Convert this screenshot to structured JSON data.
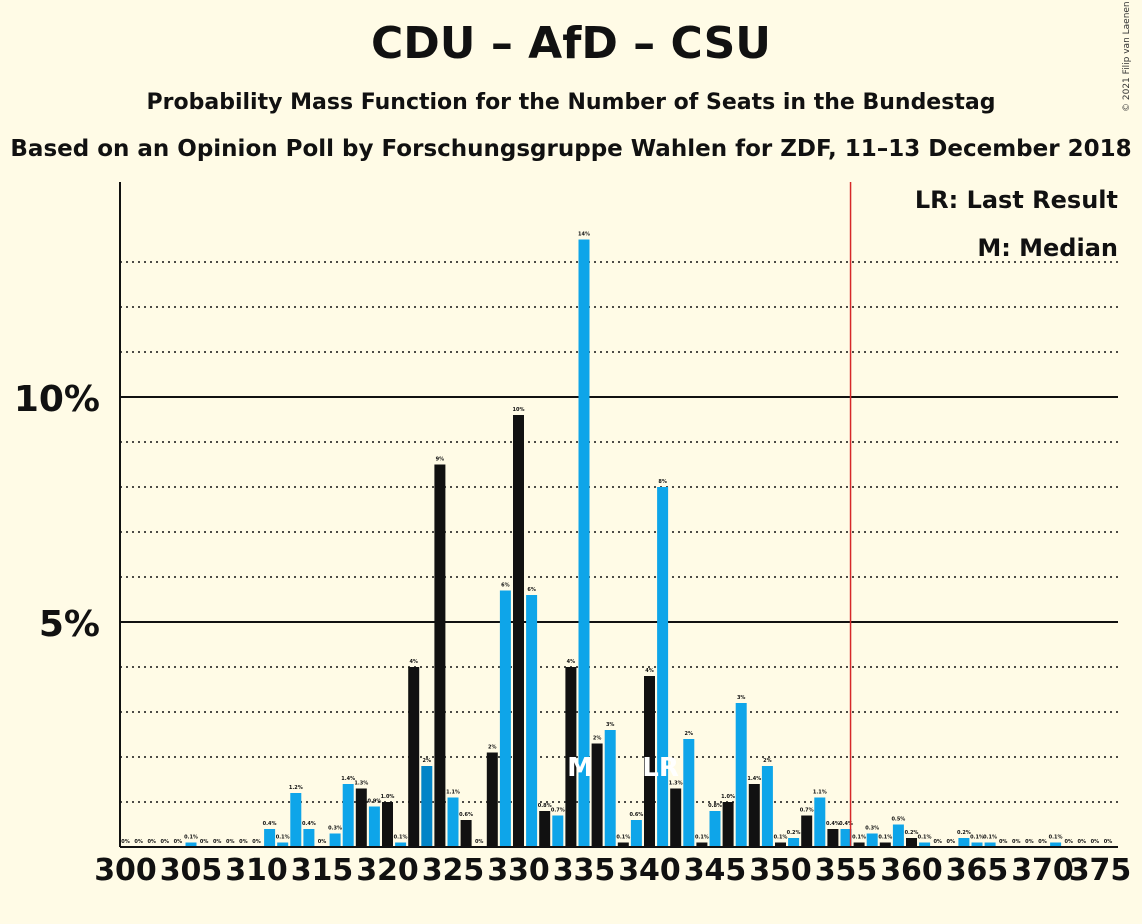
{
  "title": "CDU – AfD – CSU",
  "subtitle": "Probability Mass Function for the Number of Seats in the Bundestag",
  "subtitle2": "Based on an Opinion Poll by Forschungsgruppe Wahlen for ZDF, 11–13 December 2018",
  "copyright": "© 2021 Filip van Laenen",
  "legend": {
    "lr": "LR: Last Result",
    "m": "M: Median"
  },
  "colors": {
    "background": "#fffbe6",
    "bar_light": "#0ea5e9",
    "bar_dark": "#0284c7",
    "bar_black": "#111111",
    "majority_line": "#d62728"
  },
  "chart_data": {
    "type": "bar",
    "xlabel": "",
    "ylabel": "",
    "xlim": [
      300,
      375
    ],
    "ylim": [
      0,
      14.7
    ],
    "x_ticks": [
      300,
      305,
      310,
      315,
      320,
      325,
      330,
      335,
      340,
      345,
      350,
      355,
      360,
      365,
      370,
      375
    ],
    "y_ticks": [
      {
        "value": 5,
        "label": "5%"
      },
      {
        "value": 10,
        "label": "10%"
      }
    ],
    "grid": "dotted every 1%",
    "majority_line": 355.5,
    "median": 335,
    "last_result": 341,
    "markers": [
      {
        "x": 335,
        "label": "M"
      },
      {
        "x": 341,
        "label": "LR"
      }
    ],
    "bars": [
      {
        "x": 300,
        "value": 0.0,
        "label": "0%"
      },
      {
        "x": 301,
        "value": 0.0,
        "label": "0%"
      },
      {
        "x": 302,
        "value": 0.0,
        "label": "0%"
      },
      {
        "x": 303,
        "value": 0.0,
        "label": "0%"
      },
      {
        "x": 304,
        "value": 0.0,
        "label": "0%"
      },
      {
        "x": 305,
        "value": 0.1,
        "label": "0.1%"
      },
      {
        "x": 306,
        "value": 0.0,
        "label": "0%"
      },
      {
        "x": 307,
        "value": 0.0,
        "label": "0%"
      },
      {
        "x": 308,
        "value": 0.0,
        "label": "0%"
      },
      {
        "x": 309,
        "value": 0.0,
        "label": "0%"
      },
      {
        "x": 310,
        "value": 0.0,
        "label": "0%"
      },
      {
        "x": 311,
        "value": 0.4,
        "label": "0.4%"
      },
      {
        "x": 312,
        "value": 0.1,
        "label": "0.1%"
      },
      {
        "x": 313,
        "value": 1.2,
        "label": "1.2%"
      },
      {
        "x": 314,
        "value": 0.4,
        "label": "0.4%"
      },
      {
        "x": 315,
        "value": 0.0,
        "label": "0%"
      },
      {
        "x": 316,
        "value": 0.3,
        "label": "0.3%"
      },
      {
        "x": 317,
        "value": 1.4,
        "label": "1.4%"
      },
      {
        "x": 318,
        "value": 1.3,
        "label": "1.3%"
      },
      {
        "x": 319,
        "value": 0.9,
        "label": "0.9%"
      },
      {
        "x": 320,
        "value": 1.0,
        "label": "1.0%"
      },
      {
        "x": 321,
        "value": 0.1,
        "label": "0.1%"
      },
      {
        "x": 322,
        "value": 4.0,
        "label": "4%"
      },
      {
        "x": 323,
        "value": 1.8,
        "label": "2%"
      },
      {
        "x": 324,
        "value": 8.5,
        "label": "9%"
      },
      {
        "x": 325,
        "value": 1.1,
        "label": "1.1%"
      },
      {
        "x": 326,
        "value": 0.6,
        "label": "0.6%"
      },
      {
        "x": 327,
        "value": 0.0,
        "label": "0%"
      },
      {
        "x": 328,
        "value": 2.1,
        "label": "2%"
      },
      {
        "x": 329,
        "value": 5.7,
        "label": "6%"
      },
      {
        "x": 330,
        "value": 9.6,
        "label": "10%"
      },
      {
        "x": 331,
        "value": 5.6,
        "label": "6%"
      },
      {
        "x": 332,
        "value": 0.8,
        "label": "0.8%"
      },
      {
        "x": 333,
        "value": 0.7,
        "label": "0.7%"
      },
      {
        "x": 334,
        "value": 4.0,
        "label": "4%"
      },
      {
        "x": 335,
        "value": 13.5,
        "label": "14%"
      },
      {
        "x": 336,
        "value": 2.3,
        "label": "2%"
      },
      {
        "x": 337,
        "value": 2.6,
        "label": "3%"
      },
      {
        "x": 338,
        "value": 0.1,
        "label": "0.1%"
      },
      {
        "x": 339,
        "value": 0.6,
        "label": "0.6%"
      },
      {
        "x": 340,
        "value": 3.8,
        "label": "4%"
      },
      {
        "x": 341,
        "value": 8.0,
        "label": "8%"
      },
      {
        "x": 342,
        "value": 1.3,
        "label": "1.3%"
      },
      {
        "x": 343,
        "value": 2.4,
        "label": "2%"
      },
      {
        "x": 344,
        "value": 0.1,
        "label": "0.1%"
      },
      {
        "x": 345,
        "value": 0.8,
        "label": "0.8%"
      },
      {
        "x": 346,
        "value": 1.0,
        "label": "1.0%"
      },
      {
        "x": 347,
        "value": 3.2,
        "label": "3%"
      },
      {
        "x": 348,
        "value": 1.4,
        "label": "1.4%"
      },
      {
        "x": 349,
        "value": 1.8,
        "label": "2%"
      },
      {
        "x": 350,
        "value": 0.1,
        "label": "0.1%"
      },
      {
        "x": 351,
        "value": 0.2,
        "label": "0.2%"
      },
      {
        "x": 352,
        "value": 0.7,
        "label": "0.7%"
      },
      {
        "x": 353,
        "value": 1.1,
        "label": "1.1%"
      },
      {
        "x": 354,
        "value": 0.4,
        "label": "0.4%"
      },
      {
        "x": 355,
        "value": 0.4,
        "label": "0.4%"
      },
      {
        "x": 356,
        "value": 0.1,
        "label": "0.1%"
      },
      {
        "x": 357,
        "value": 0.3,
        "label": "0.3%"
      },
      {
        "x": 358,
        "value": 0.1,
        "label": "0.1%"
      },
      {
        "x": 359,
        "value": 0.5,
        "label": "0.5%"
      },
      {
        "x": 360,
        "value": 0.2,
        "label": "0.2%"
      },
      {
        "x": 361,
        "value": 0.1,
        "label": "0.1%"
      },
      {
        "x": 362,
        "value": 0.0,
        "label": "0%"
      },
      {
        "x": 363,
        "value": 0.0,
        "label": "0%"
      },
      {
        "x": 364,
        "value": 0.2,
        "label": "0.2%"
      },
      {
        "x": 365,
        "value": 0.1,
        "label": "0.1%"
      },
      {
        "x": 366,
        "value": 0.1,
        "label": "0.1%"
      },
      {
        "x": 367,
        "value": 0.0,
        "label": "0%"
      },
      {
        "x": 368,
        "value": 0.0,
        "label": "0%"
      },
      {
        "x": 369,
        "value": 0.0,
        "label": "0%"
      },
      {
        "x": 370,
        "value": 0.0,
        "label": "0%"
      },
      {
        "x": 371,
        "value": 0.1,
        "label": "0.1%"
      },
      {
        "x": 372,
        "value": 0.0,
        "label": "0%"
      },
      {
        "x": 373,
        "value": 0.0,
        "label": "0%"
      },
      {
        "x": 374,
        "value": 0.0,
        "label": "0%"
      },
      {
        "x": 375,
        "value": 0.0,
        "label": "0%"
      }
    ]
  }
}
